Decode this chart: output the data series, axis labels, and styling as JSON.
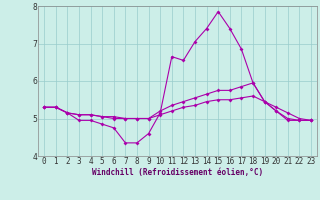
{
  "title": "",
  "xlabel": "Windchill (Refroidissement éolien,°C)",
  "ylabel": "",
  "xlim": [
    -0.5,
    23.5
  ],
  "ylim": [
    4,
    8
  ],
  "yticks": [
    4,
    5,
    6,
    7,
    8
  ],
  "xticks": [
    0,
    1,
    2,
    3,
    4,
    5,
    6,
    7,
    8,
    9,
    10,
    11,
    12,
    13,
    14,
    15,
    16,
    17,
    18,
    19,
    20,
    21,
    22,
    23
  ],
  "background_color": "#cceee8",
  "line_color": "#aa00aa",
  "grid_color": "#99cccc",
  "line1_y": [
    5.3,
    5.3,
    5.15,
    4.95,
    4.95,
    4.85,
    4.75,
    4.35,
    4.35,
    4.6,
    5.15,
    6.65,
    6.55,
    7.05,
    7.4,
    7.85,
    7.4,
    6.85,
    5.95,
    5.45,
    5.2,
    4.95,
    4.95,
    4.95
  ],
  "line2_y": [
    5.3,
    5.3,
    5.15,
    5.1,
    5.1,
    5.05,
    5.05,
    5.0,
    5.0,
    5.0,
    5.2,
    5.35,
    5.45,
    5.55,
    5.65,
    5.75,
    5.75,
    5.85,
    5.95,
    5.45,
    5.3,
    5.15,
    5.0,
    4.95
  ],
  "line3_y": [
    5.3,
    5.3,
    5.15,
    5.1,
    5.1,
    5.05,
    5.0,
    5.0,
    5.0,
    5.0,
    5.1,
    5.2,
    5.3,
    5.35,
    5.45,
    5.5,
    5.5,
    5.55,
    5.6,
    5.45,
    5.2,
    5.0,
    4.95,
    4.95
  ],
  "tick_fontsize": 5.5,
  "xlabel_fontsize": 5.5,
  "marker_size": 2.0,
  "line_width": 0.8
}
